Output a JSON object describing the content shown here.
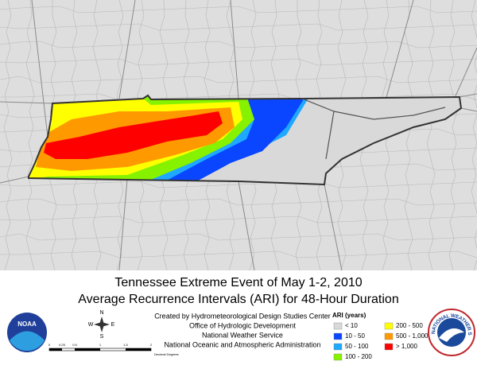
{
  "title": "Tennessee Extreme Event of May 1-2, 2010",
  "subtitle": "Average Recurrence Intervals (ARI) for 48-Hour Duration",
  "credits": [
    "Created by Hydrometeorological Design Studies Center",
    "Office of Hydrologic Development",
    "National Weather Service",
    "National Oceanic and Atmospheric Administration"
  ],
  "legend": {
    "title": "ARI (years)",
    "items": [
      {
        "label": "< 10",
        "color": "#d9d9d9"
      },
      {
        "label": "10 - 50",
        "color": "#0a46ff"
      },
      {
        "label": "50 - 100",
        "color": "#1ea9ff"
      },
      {
        "label": "100 - 200",
        "color": "#86f200"
      },
      {
        "label": "200 - 500",
        "color": "#ffff00"
      },
      {
        "label": "500 - 1,000",
        "color": "#ff9900"
      },
      {
        "label": "> 1,000",
        "color": "#ff0000"
      }
    ]
  },
  "scale_bar": {
    "labels": [
      "0",
      "0.25",
      "0.5",
      "1",
      "1.5",
      "2"
    ],
    "unit": "Decimal Degrees"
  },
  "compass": {
    "n": "N",
    "s": "S",
    "e": "E",
    "w": "W"
  },
  "logos": {
    "noaa": "NOAA",
    "nws": "NATIONAL WEATHER SERVICE"
  }
}
